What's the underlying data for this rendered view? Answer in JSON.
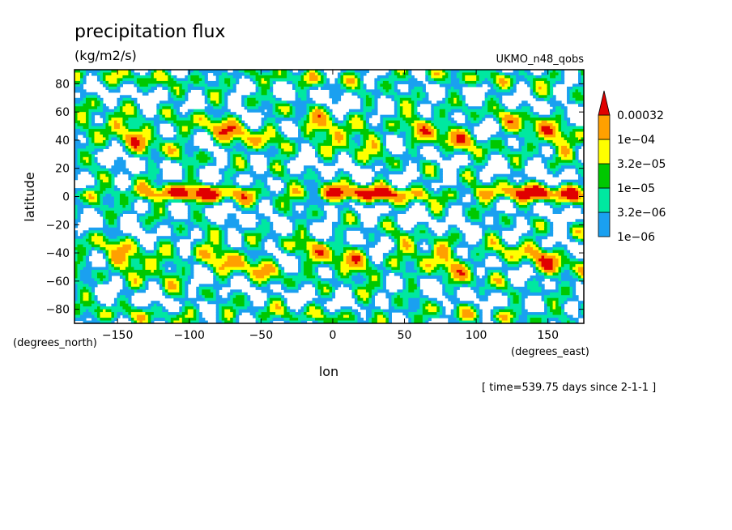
{
  "chart_data": {
    "type": "heatmap",
    "title": "precipitation flux",
    "units": "(kg/m2/s)",
    "dataset": "UKMO_n48_qobs",
    "xlabel": "lon",
    "ylabel": "latitude",
    "x_units": "(degrees_east)",
    "y_units": "(degrees_north)",
    "xlim": [
      -180,
      175
    ],
    "ylim": [
      -90,
      90
    ],
    "x_ticks": [
      -150,
      -100,
      -50,
      0,
      50,
      100,
      150
    ],
    "y_ticks": [
      80,
      60,
      40,
      20,
      0,
      -20,
      -40,
      -60,
      -80
    ],
    "time_note": "[ time=539.75 days since 2-1-1 ]",
    "colorbar": {
      "levels": [
        "0.00032",
        "1e-04",
        "3.2e-05",
        "1e-05",
        "3.2e-06",
        "1e-06"
      ],
      "colors": [
        "#ffffff",
        "#1aa0f0",
        "#00e8a0",
        "#00c800",
        "#ffff00",
        "#ffa000",
        "#e00000"
      ]
    }
  }
}
